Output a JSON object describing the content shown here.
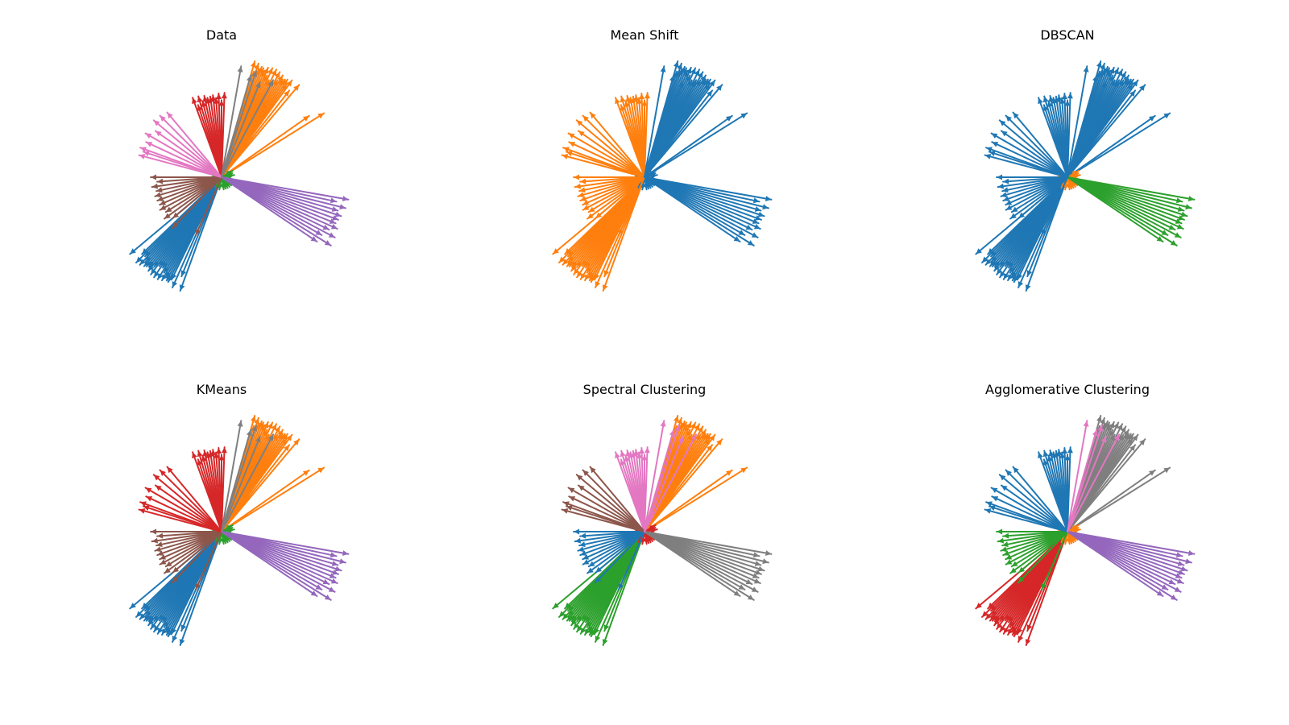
{
  "palette": {
    "blue": "#1f77b4",
    "orange": "#ff7f0e",
    "green": "#2ca02c",
    "red": "#d62728",
    "purple": "#9467bd",
    "brown": "#8c564b",
    "pink": "#e377c2",
    "gray": "#7f7f7f"
  },
  "chart_data": {
    "type": "scatter",
    "grid": false,
    "axes_visible": false,
    "layout": "2 rows x 3 columns",
    "vector_groups": [
      {
        "id": "A",
        "angles_deg": [
          225,
          226,
          227,
          228,
          229,
          230,
          231,
          232,
          233,
          234,
          235,
          236,
          237,
          238,
          239,
          240,
          241,
          242,
          243,
          244,
          220,
          224,
          246,
          248,
          250
        ],
        "length": 150
      },
      {
        "id": "B",
        "angles_deg": [
          50,
          52,
          54,
          55,
          56,
          57,
          58,
          59,
          60,
          61,
          62,
          63,
          64,
          65,
          66,
          67,
          68,
          69,
          70,
          71,
          72,
          73,
          74,
          35,
          32
        ],
        "length": 150
      },
      {
        "id": "C",
        "angles_deg": [
          200,
          210,
          220,
          240,
          260,
          280,
          300,
          320,
          330,
          340,
          350,
          10,
          20,
          30,
          180,
          190,
          290,
          310
        ],
        "length": 16
      },
      {
        "id": "D",
        "angles_deg": [
          88,
          90,
          92,
          94,
          96,
          98,
          100,
          102,
          104,
          106,
          108,
          110
        ],
        "length": 105
      },
      {
        "id": "E",
        "angles_deg": [
          -10,
          -12,
          -14,
          -16,
          -18,
          -20,
          -22,
          -24,
          -26,
          -28,
          -30,
          -32,
          -34
        ],
        "length": 160
      },
      {
        "id": "F",
        "angles_deg": [
          180,
          184,
          188,
          192,
          196,
          200,
          204,
          208,
          212,
          216,
          220,
          226,
          246
        ],
        "length": 88
      },
      {
        "id": "G",
        "angles_deg": [
          140,
          145,
          150,
          155,
          160,
          165,
          130,
          135,
          162
        ],
        "length": 110
      },
      {
        "id": "H",
        "angles_deg": [
          80,
          68,
          72,
          74,
          62
        ],
        "length": 140
      }
    ],
    "panels": [
      {
        "title": "Data",
        "group_colors": {
          "A": "blue",
          "B": "orange",
          "C": "green",
          "D": "red",
          "E": "purple",
          "F": "brown",
          "G": "pink",
          "H": "gray"
        }
      },
      {
        "title": "Mean Shift",
        "group_colors": {
          "A": "orange",
          "B": "blue",
          "C": "blue",
          "D": "orange",
          "E": "blue",
          "F": "orange",
          "G": "orange",
          "H": "blue"
        }
      },
      {
        "title": "DBSCAN",
        "group_colors": {
          "A": "blue",
          "B": "blue",
          "C": "orange",
          "D": "blue",
          "E": "green",
          "F": "blue",
          "G": "blue",
          "H": "blue"
        }
      },
      {
        "title": "KMeans",
        "group_colors": {
          "A": "blue",
          "B": "orange",
          "C": "green",
          "D": "red",
          "E": "purple",
          "F": "brown",
          "G": "red",
          "H": "gray"
        }
      },
      {
        "title": "Spectral Clustering",
        "group_colors": {
          "A": "green",
          "B": "orange",
          "C": "red",
          "D": "pink",
          "E": "gray",
          "F": "blue",
          "G": "brown",
          "H": "pink"
        }
      },
      {
        "title": "Agglomerative Clustering",
        "group_colors": {
          "A": "red",
          "B": "gray",
          "C": "orange",
          "D": "blue",
          "E": "purple",
          "F": "green",
          "G": "blue",
          "H": "pink"
        }
      }
    ]
  }
}
